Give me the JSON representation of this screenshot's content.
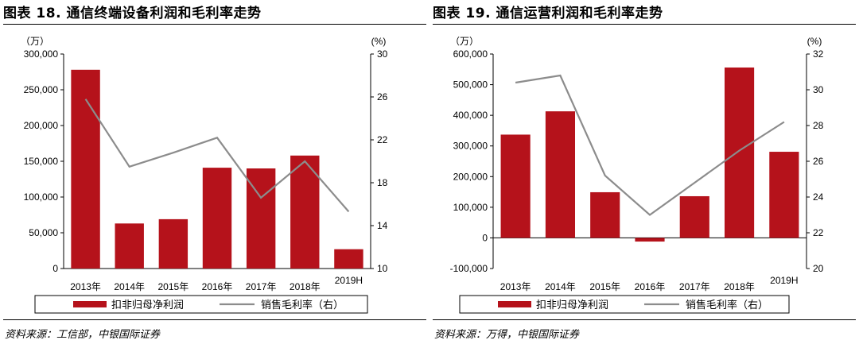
{
  "colors": {
    "bar": "#b5121b",
    "line": "#8c8c8c",
    "axis": "#000000"
  },
  "chart_data": [
    {
      "type": "bar",
      "title": "图表 18. 通信终端设备利润和毛利率走势",
      "source": "资料来源：工信部，中银国际证券",
      "categories": [
        "2013年",
        "2014年",
        "2015年",
        "2016年",
        "2017年",
        "2018年",
        "2019H"
      ],
      "y_left_unit": "（万）",
      "y_right_unit": "(%)",
      "ylim_left": [
        0,
        300000
      ],
      "yticks_left": [
        "0",
        "50,000",
        "100,000",
        "150,000",
        "200,000",
        "250,000",
        "300,000"
      ],
      "ylim_right": [
        10,
        30
      ],
      "yticks_right": [
        "10",
        "14",
        "18",
        "22",
        "26",
        "30"
      ],
      "legend_placement": "bottom",
      "series": [
        {
          "name": "扣非归母净利润",
          "type": "bar",
          "axis": "left",
          "values": [
            278000,
            63000,
            69000,
            141000,
            140000,
            158000,
            27000
          ]
        },
        {
          "name": "销售毛利率（右）",
          "type": "line",
          "axis": "right",
          "values": [
            25.8,
            19.5,
            20.8,
            22.2,
            16.6,
            20.0,
            15.3
          ]
        }
      ]
    },
    {
      "type": "bar",
      "title": "图表 19. 通信运营利润和毛利率走势",
      "source": "资料来源：万得，中银国际证券",
      "categories": [
        "2013年",
        "2014年",
        "2015年",
        "2016年",
        "2017年",
        "2018年",
        "2019H"
      ],
      "y_left_unit": "（万）",
      "y_right_unit": "(%)",
      "ylim_left": [
        -100000,
        600000
      ],
      "yticks_left": [
        "-100,000",
        "0",
        "100,000",
        "200,000",
        "300,000",
        "400,000",
        "500,000",
        "600,000"
      ],
      "ylim_right": [
        20,
        32
      ],
      "yticks_right": [
        "20",
        "22",
        "24",
        "26",
        "28",
        "30",
        "32"
      ],
      "legend_placement": "bottom",
      "series": [
        {
          "name": "扣非归母净利润",
          "type": "bar",
          "axis": "left",
          "values": [
            337000,
            413000,
            149000,
            -12000,
            136000,
            556000,
            281000
          ]
        },
        {
          "name": "销售毛利率（右）",
          "type": "line",
          "axis": "right",
          "values": [
            30.4,
            30.8,
            25.2,
            23.0,
            24.8,
            26.6,
            28.2
          ]
        }
      ]
    }
  ]
}
